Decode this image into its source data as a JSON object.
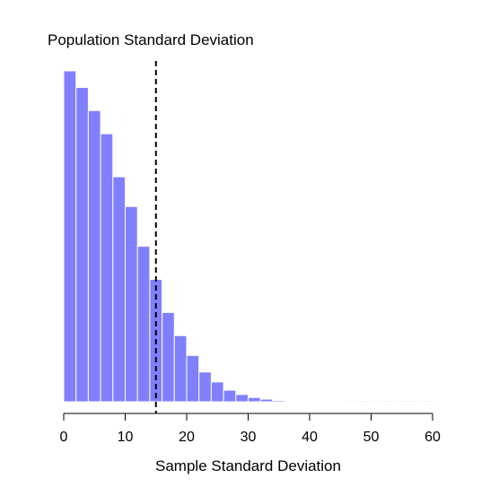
{
  "chart_data": {
    "type": "bar",
    "title": "",
    "xlabel": "Sample Standard Deviation",
    "ylabel": "",
    "xlim": [
      0,
      60
    ],
    "ylim": [
      0,
      1
    ],
    "x_ticks": [
      0,
      10,
      20,
      30,
      40,
      50,
      60
    ],
    "bin_width": 2,
    "bin_starts": [
      0,
      2,
      4,
      6,
      8,
      10,
      12,
      14,
      16,
      18,
      20,
      22,
      24,
      26,
      28,
      30,
      32,
      34,
      36,
      38,
      40,
      42,
      44,
      46,
      48,
      50,
      52,
      54,
      56,
      58
    ],
    "values": [
      1.0,
      0.95,
      0.88,
      0.81,
      0.68,
      0.59,
      0.47,
      0.37,
      0.27,
      0.2,
      0.14,
      0.09,
      0.06,
      0.035,
      0.022,
      0.013,
      0.008,
      0.004,
      0.002,
      0.001,
      0.001,
      0.001,
      0.001,
      0.003,
      0.003,
      0.003,
      0.003,
      0.003,
      0.003,
      0.003
    ],
    "bar_color": "#8080ff",
    "reference_line": {
      "x": 15,
      "label": "Population Standard Deviation",
      "style": "dashed",
      "color": "#000000"
    },
    "grid": false,
    "legend": "none"
  }
}
